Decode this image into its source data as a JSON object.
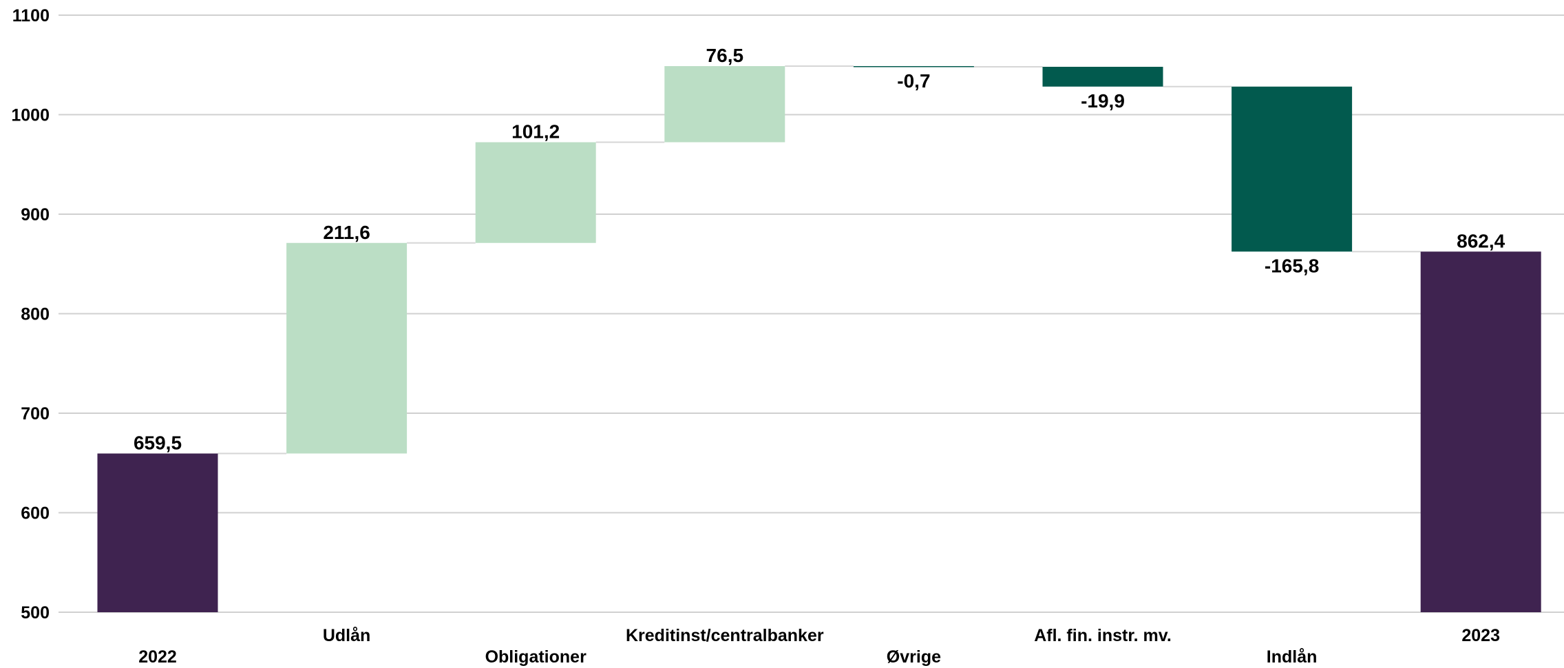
{
  "chart_data": {
    "type": "waterfall",
    "categories": [
      "2022",
      "Udlån",
      "Obligationer",
      "Kreditinst/centralbanker",
      "Øvrige",
      "Afl. fin. instr. mv.",
      "Indlån",
      "2023"
    ],
    "values": [
      659.5,
      211.6,
      101.2,
      76.5,
      -0.7,
      -19.9,
      -165.8,
      862.4
    ],
    "kinds": [
      "total",
      "delta",
      "delta",
      "delta",
      "delta",
      "delta",
      "delta",
      "total"
    ],
    "value_labels": [
      "659,5",
      "211,6",
      "101,2",
      "76,5",
      "-0,7",
      "-19,9",
      "-165,8",
      "862,4"
    ],
    "ylim": [
      500,
      1100
    ],
    "yticks": [
      500,
      600,
      700,
      800,
      900,
      1000,
      1100
    ],
    "grid": true,
    "colors": {
      "total": "#3f2350",
      "increase": "#bbdec5",
      "decrease": "#025a4e",
      "grid": "#d0d0d0",
      "connector": "#d6d6d6"
    }
  }
}
